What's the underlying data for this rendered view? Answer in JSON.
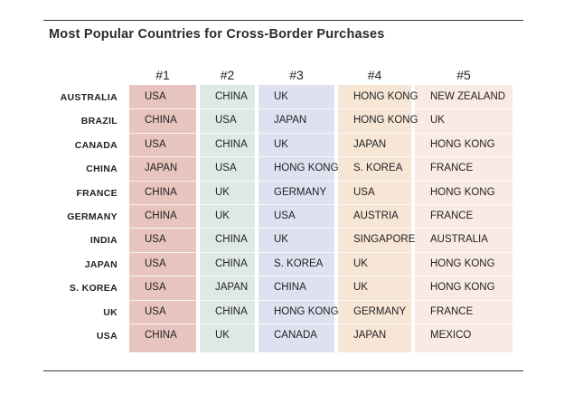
{
  "title": "Most Popular Countries for Cross-Border Purchases",
  "chart_data": {
    "type": "table",
    "columns": [
      "#1",
      "#2",
      "#3",
      "#4",
      "#5"
    ],
    "column_colors": [
      "#e8c4bf",
      "#dfe9e4",
      "#dfe1f0",
      "#f7e6d6",
      "#f9ebe4"
    ],
    "rows": [
      {
        "label": "AUSTRALIA",
        "values": [
          "USA",
          "CHINA",
          "UK",
          "HONG KONG",
          "NEW ZEALAND"
        ]
      },
      {
        "label": "BRAZIL",
        "values": [
          "CHINA",
          "USA",
          "JAPAN",
          "HONG KONG",
          "UK"
        ]
      },
      {
        "label": "CANADA",
        "values": [
          "USA",
          "CHINA",
          "UK",
          "JAPAN",
          "HONG KONG"
        ]
      },
      {
        "label": "CHINA",
        "values": [
          "JAPAN",
          "USA",
          "HONG KONG",
          "S. KOREA",
          "FRANCE"
        ]
      },
      {
        "label": "FRANCE",
        "values": [
          "CHINA",
          "UK",
          "GERMANY",
          "USA",
          "HONG KONG"
        ]
      },
      {
        "label": "GERMANY",
        "values": [
          "CHINA",
          "UK",
          "USA",
          "AUSTRIA",
          "FRANCE"
        ]
      },
      {
        "label": "INDIA",
        "values": [
          "USA",
          "CHINA",
          "UK",
          "SINGAPORE",
          "AUSTRALIA"
        ]
      },
      {
        "label": "JAPAN",
        "values": [
          "USA",
          "CHINA",
          "S. KOREA",
          "UK",
          "HONG KONG"
        ]
      },
      {
        "label": "S. KOREA",
        "values": [
          "USA",
          "JAPAN",
          "CHINA",
          "UK",
          "HONG KONG"
        ]
      },
      {
        "label": "UK",
        "values": [
          "USA",
          "CHINA",
          "HONG KONG",
          "GERMANY",
          "FRANCE"
        ]
      },
      {
        "label": "USA",
        "values": [
          "CHINA",
          "UK",
          "CANADA",
          "JAPAN",
          "MEXICO"
        ]
      }
    ]
  }
}
